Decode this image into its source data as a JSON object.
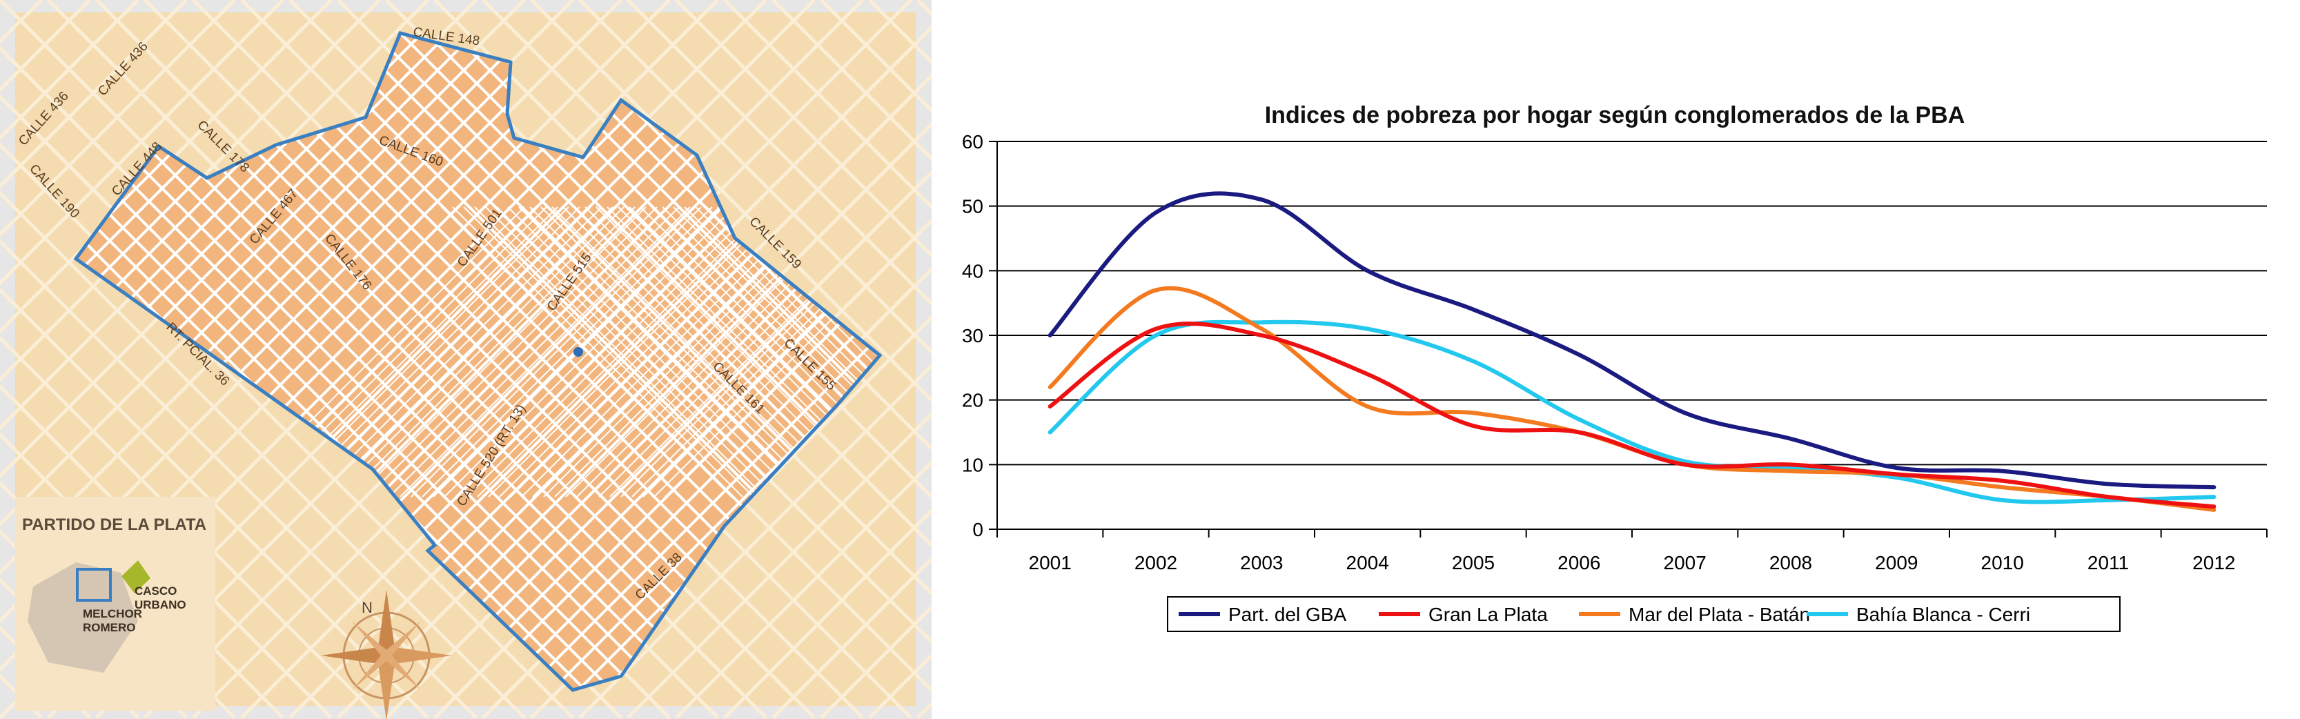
{
  "map": {
    "inset_title": "PARTIDO DE LA PLATA",
    "inset_labels": {
      "melchor": [
        "MELCHOR",
        "ROMERO"
      ],
      "casco": [
        "CASCO",
        "URBANO"
      ]
    },
    "compass_label": "N",
    "streets": [
      {
        "text": "CALLE 148"
      },
      {
        "text": "CALLE 436"
      },
      {
        "text": "CALLE 436"
      },
      {
        "text": "CALLE 448"
      },
      {
        "text": "CALLE 190"
      },
      {
        "text": "CALLE 178"
      },
      {
        "text": "CALLE 160"
      },
      {
        "text": "CALLE 467"
      },
      {
        "text": "CALLE 501"
      },
      {
        "text": "CALLE 176"
      },
      {
        "text": "CALLE 515"
      },
      {
        "text": "CALLE 159"
      },
      {
        "text": "RT. PCIAL. 36"
      },
      {
        "text": "CALLE 155"
      },
      {
        "text": "CALLE 161"
      },
      {
        "text": "CALLE 520 (RT. 13)"
      },
      {
        "text": "CALLE 38"
      }
    ],
    "colors": {
      "background": "#f5dcb0",
      "district": "#f2b57d",
      "border": "#3a7fc1",
      "roads": "#ffffff"
    }
  },
  "chart_data": {
    "type": "line",
    "title": "Indices de pobreza por hogar según conglomerados de la PBA",
    "xlabel": "",
    "ylabel": "",
    "x": [
      2001,
      2002,
      2003,
      2004,
      2005,
      2006,
      2007,
      2008,
      2009,
      2010,
      2011,
      2012
    ],
    "ylim": [
      0,
      60
    ],
    "yticks": [
      0,
      10,
      20,
      30,
      40,
      50,
      60
    ],
    "grid": true,
    "legend_position": "bottom",
    "series": [
      {
        "name": "Part. del GBA",
        "color": "#1a1a80",
        "values": [
          30,
          49,
          51,
          40,
          34,
          27,
          18,
          14,
          9.5,
          9,
          7,
          6.5
        ]
      },
      {
        "name": "Gran La Plata",
        "color": "#ee1111",
        "values": [
          19,
          31,
          30,
          24,
          16,
          15,
          10,
          10,
          8.5,
          7.5,
          5,
          3.5
        ]
      },
      {
        "name": "Mar del Plata - Batán",
        "color": "#f47a1f",
        "values": [
          22,
          37,
          31,
          19,
          18,
          15,
          10,
          9,
          8.5,
          6.5,
          5,
          3
        ]
      },
      {
        "name": "Bahía Blanca - Cerri",
        "color": "#22c8ee",
        "values": [
          15,
          30,
          32,
          31,
          26,
          17,
          10.5,
          9.5,
          8,
          4.5,
          4.5,
          5
        ]
      }
    ]
  }
}
